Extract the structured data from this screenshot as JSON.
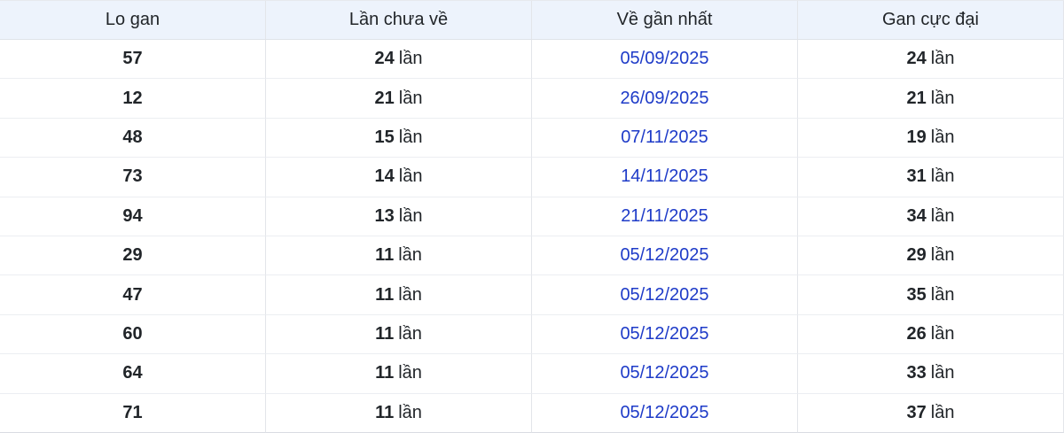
{
  "colors": {
    "header_background": "#edf3fc",
    "border": "#e3e5ea",
    "date_link_blue": "#1e3bc8",
    "text": "#212529"
  },
  "table": {
    "unit_label": "lần",
    "columns": {
      "lo_gan": "Lo gan",
      "lan_chua_ve": "Lần chưa về",
      "ve_gan_nhat": "Về gần nhất",
      "gan_cuc_dai": "Gan cực đại"
    },
    "rows": [
      {
        "lo_gan": "57",
        "lan_chua_ve": "24",
        "ve_gan_nhat": "05/09/2025",
        "gan_cuc_dai": "24"
      },
      {
        "lo_gan": "12",
        "lan_chua_ve": "21",
        "ve_gan_nhat": "26/09/2025",
        "gan_cuc_dai": "21"
      },
      {
        "lo_gan": "48",
        "lan_chua_ve": "15",
        "ve_gan_nhat": "07/11/2025",
        "gan_cuc_dai": "19"
      },
      {
        "lo_gan": "73",
        "lan_chua_ve": "14",
        "ve_gan_nhat": "14/11/2025",
        "gan_cuc_dai": "31"
      },
      {
        "lo_gan": "94",
        "lan_chua_ve": "13",
        "ve_gan_nhat": "21/11/2025",
        "gan_cuc_dai": "34"
      },
      {
        "lo_gan": "29",
        "lan_chua_ve": "11",
        "ve_gan_nhat": "05/12/2025",
        "gan_cuc_dai": "29"
      },
      {
        "lo_gan": "47",
        "lan_chua_ve": "11",
        "ve_gan_nhat": "05/12/2025",
        "gan_cuc_dai": "35"
      },
      {
        "lo_gan": "60",
        "lan_chua_ve": "11",
        "ve_gan_nhat": "05/12/2025",
        "gan_cuc_dai": "26"
      },
      {
        "lo_gan": "64",
        "lan_chua_ve": "11",
        "ve_gan_nhat": "05/12/2025",
        "gan_cuc_dai": "33"
      },
      {
        "lo_gan": "71",
        "lan_chua_ve": "11",
        "ve_gan_nhat": "05/12/2025",
        "gan_cuc_dai": "37"
      }
    ]
  }
}
